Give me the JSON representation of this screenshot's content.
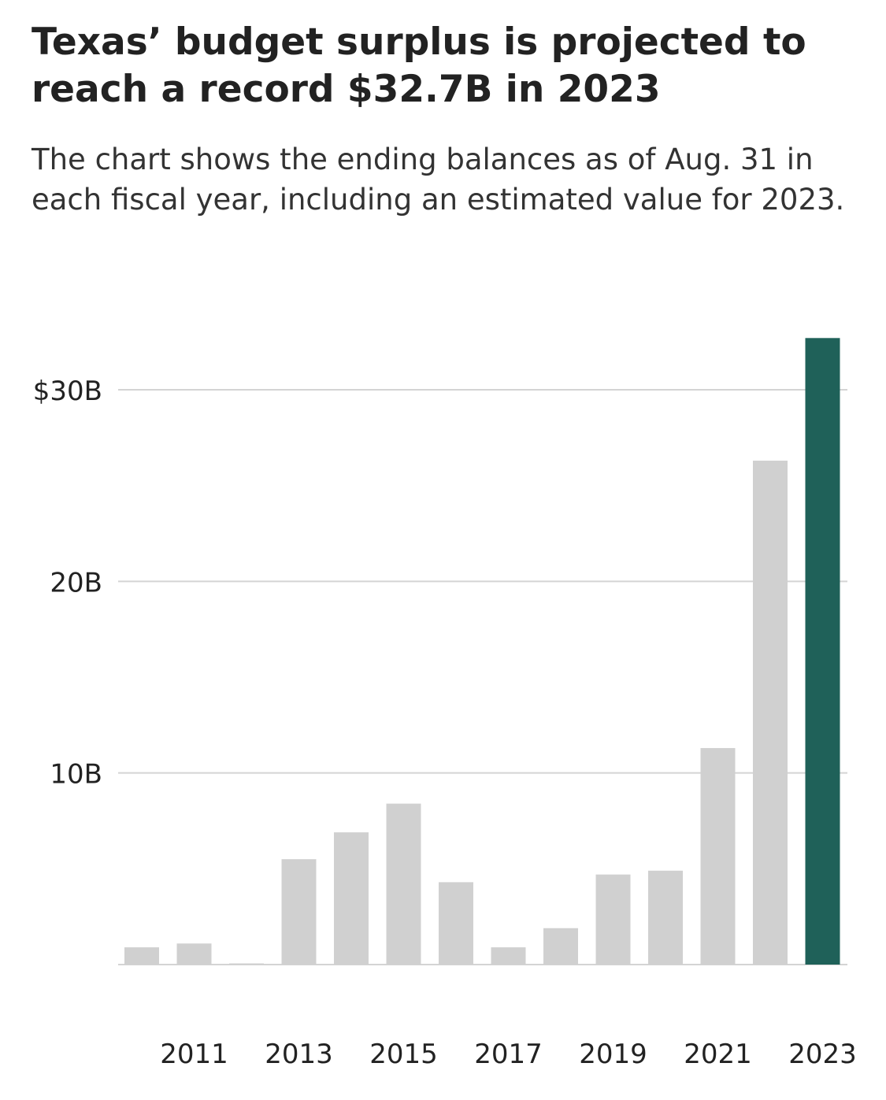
{
  "title": "Texas’ budget surplus is projected to reach a record $32.7B in 2023",
  "subtitle": "The chart shows the ending balances as of Aug. 31 in each fiscal year, including an estimated value for 2023.",
  "colors": {
    "default_bar": "#d0d0d0",
    "highlight_bar": "#1f6159",
    "grid": "#d4d4d4",
    "text": "#222222"
  },
  "chart_data": {
    "type": "bar",
    "categories": [
      "2010",
      "2011",
      "2012",
      "2013",
      "2014",
      "2015",
      "2016",
      "2017",
      "2018",
      "2019",
      "2020",
      "2021",
      "2022",
      "2023"
    ],
    "values": [
      0.9,
      1.1,
      0.0,
      5.5,
      6.9,
      8.4,
      4.3,
      0.9,
      1.9,
      4.7,
      4.9,
      11.3,
      26.3,
      32.7
    ],
    "highlight": "2023",
    "x_tick_labels": [
      "2011",
      "2013",
      "2015",
      "2017",
      "2019",
      "2021",
      "2023"
    ],
    "y_ticks": [
      {
        "value": 10,
        "label": "10B"
      },
      {
        "value": 20,
        "label": "20B"
      },
      {
        "value": 30,
        "label": "$30B"
      }
    ],
    "ylim": [
      0,
      33
    ],
    "grid": true,
    "xlabel": "",
    "ylabel": ""
  }
}
